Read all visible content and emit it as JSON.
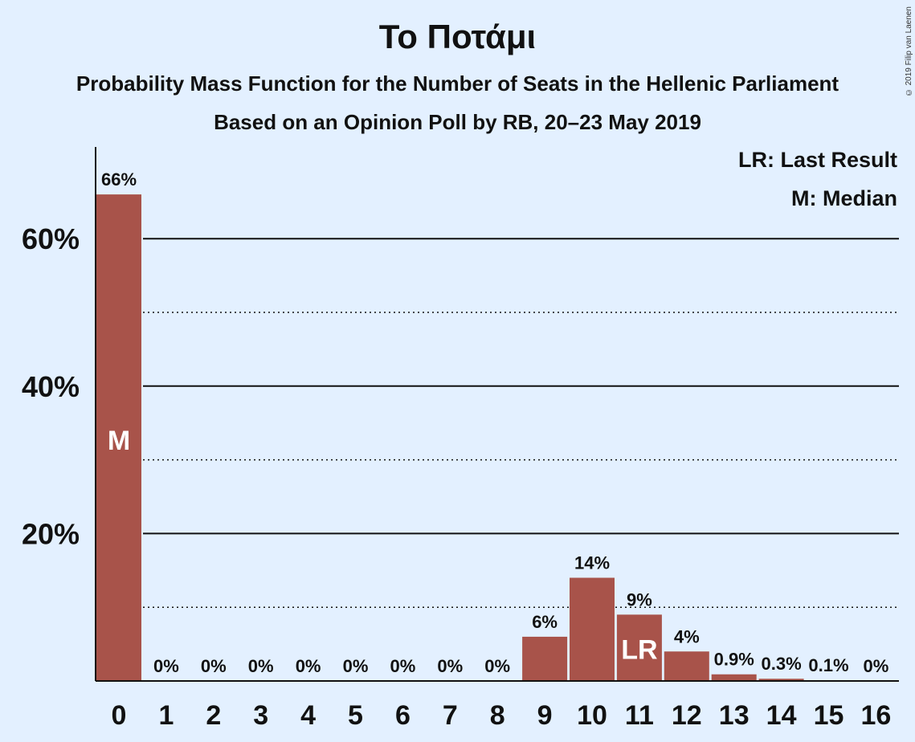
{
  "header": {
    "title": "Το Ποτάμι",
    "subtitle": "Probability Mass Function for the Number of Seats in the Hellenic Parliament",
    "source": "Based on an Opinion Poll by RB, 20–23 May 2019",
    "copyright": "© 2019 Filip van Laenen"
  },
  "legend": {
    "last_result": "LR: Last Result",
    "median": "M: Median"
  },
  "chart_data": {
    "type": "bar",
    "categories": [
      "0",
      "1",
      "2",
      "3",
      "4",
      "5",
      "6",
      "7",
      "8",
      "9",
      "10",
      "11",
      "12",
      "13",
      "14",
      "15",
      "16"
    ],
    "values": [
      66,
      0,
      0,
      0,
      0,
      0,
      0,
      0,
      0,
      6,
      14,
      9,
      4,
      0.9,
      0.3,
      0.1,
      0
    ],
    "value_labels": [
      "66%",
      "0%",
      "0%",
      "0%",
      "0%",
      "0%",
      "0%",
      "0%",
      "0%",
      "6%",
      "14%",
      "9%",
      "4%",
      "0.9%",
      "0.3%",
      "0.1%",
      "0%"
    ],
    "ytick_values": [
      20,
      40,
      60
    ],
    "ytick_labels": [
      "20%",
      "40%",
      "60%"
    ],
    "minor_gridlines": [
      10,
      30,
      50
    ],
    "ylim": [
      0,
      72
    ],
    "markers": [
      {
        "category": "0",
        "label": "M"
      },
      {
        "category": "11",
        "label": "LR"
      }
    ],
    "bar_color": "#a8534a",
    "grid": true
  }
}
